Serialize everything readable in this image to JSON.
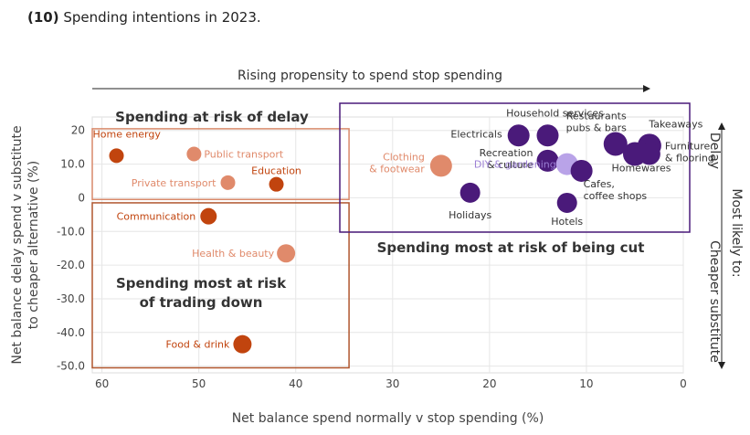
{
  "heading": {
    "number": "(10)",
    "text": "Spending intentions in 2023."
  },
  "chart_data": {
    "type": "scatter",
    "title": "Spending intentions in 2023.",
    "xlabel": "Net balance spend normally v stop spending (%)",
    "ylabel": "Net balance delay spend v substitute to cheaper alternative (%)",
    "ylabel_lines": [
      "Net balance delay spend v substitute",
      "to cheaper alternative (%)"
    ],
    "xlim": [
      61,
      0
    ],
    "ylim": [
      -52,
      24
    ],
    "x_reversed": true,
    "grid": true,
    "xticks": [
      60,
      50,
      40,
      30,
      20,
      10,
      0
    ],
    "xtick_labels": [
      "60",
      "50",
      "40",
      "30",
      "20",
      "10",
      "0"
    ],
    "yticks": [
      20,
      10,
      0,
      -10,
      -20,
      -30,
      -40,
      -50
    ],
    "ytick_labels": [
      "20",
      "10.0",
      "0",
      "-10.0",
      "-20.0",
      "-30.0",
      "-40.0",
      "-50.0"
    ],
    "top_arrow_label": "Rising propensity to spend stop spending",
    "right_axis": {
      "title": "Most likely to:",
      "top_label": "Delay",
      "bottom_label": "Cheaper substitute"
    },
    "colors": {
      "dark_orange": "#c1440e",
      "light_orange": "#e08a6b",
      "dark_purple": "#4a1a7a",
      "light_purple": "#b9a3e8",
      "box_orange": "#d9896a",
      "box_dark_orange": "#b0562e",
      "box_purple": "#4a1a7a"
    },
    "boxes": [
      {
        "label": "Spending at risk of delay",
        "x": [
          61,
          34.5
        ],
        "y": [
          20.5,
          -0.5
        ],
        "color": "#d9896a"
      },
      {
        "label": "Spending most at risk of trading down",
        "label_lines": [
          "Spending most at risk",
          "of trading down"
        ],
        "x": [
          61,
          34.5
        ],
        "y": [
          -1.5,
          -50.5
        ],
        "color": "#b0562e"
      },
      {
        "label": "Spending most at risk of being cut",
        "x": [
          35,
          0
        ],
        "y": [
          28,
          -10.5
        ],
        "color": "#4a1a7a"
      }
    ],
    "points": [
      {
        "label": "Home energy",
        "x": 58.5,
        "y": 12.5,
        "color": "#c1440e",
        "label_color": "#c1440e"
      },
      {
        "label": "Public transport",
        "x": 50.5,
        "y": 13.0,
        "color": "#e08a6b",
        "label_color": "#e08a6b"
      },
      {
        "label": "Private transport",
        "x": 47.0,
        "y": 4.5,
        "color": "#e08a6b",
        "label_color": "#e08a6b"
      },
      {
        "label": "Education",
        "x": 42.0,
        "y": 4.0,
        "color": "#c1440e",
        "label_color": "#c1440e"
      },
      {
        "label": "Communication",
        "x": 49.0,
        "y": -5.5,
        "color": "#c1440e",
        "label_color": "#c1440e"
      },
      {
        "label": "Health & beauty",
        "x": 41.0,
        "y": -16.5,
        "color": "#e08a6b",
        "label_color": "#e08a6b"
      },
      {
        "label": "Food & drink",
        "x": 45.5,
        "y": -43.5,
        "color": "#c1440e",
        "label_color": "#c1440e"
      },
      {
        "label": "Clothing & footwear",
        "label_lines": [
          "Clothing",
          "& footwear"
        ],
        "x": 25.0,
        "y": 9.5,
        "color": "#e08a6b",
        "label_color": "#e08a6b"
      },
      {
        "label": "Holidays",
        "x": 22.0,
        "y": 1.5,
        "color": "#4a1a7a",
        "label_color": "#333333"
      },
      {
        "label": "Electricals",
        "x": 17.0,
        "y": 18.5,
        "color": "#4a1a7a",
        "label_color": "#333333"
      },
      {
        "label": "Household services",
        "x": 14.0,
        "y": 18.5,
        "color": "#4a1a7a",
        "label_color": "#333333"
      },
      {
        "label": "Recreation & culture",
        "label_lines": [
          "Recreation",
          "& culture"
        ],
        "x": 14.0,
        "y": 11.0,
        "color": "#4a1a7a",
        "label_color": "#333333"
      },
      {
        "label": "DIY & gardening",
        "x": 12.0,
        "y": 10.0,
        "color": "#b9a3e8",
        "label_color": "#9b7fd4"
      },
      {
        "label": "Cafes, coffee shops",
        "label_lines": [
          "Cafes,",
          "coffee shops"
        ],
        "x": 10.5,
        "y": 8.0,
        "color": "#4a1a7a",
        "label_color": "#333333"
      },
      {
        "label": "Hotels",
        "x": 12.0,
        "y": -1.5,
        "color": "#4a1a7a",
        "label_color": "#333333"
      },
      {
        "label": "Restaurants pubs & bars",
        "label_lines": [
          "Restaurants",
          "pubs & bars"
        ],
        "x": 7.0,
        "y": 16.0,
        "color": "#4a1a7a",
        "label_color": "#333333"
      },
      {
        "label": "Homewares",
        "x": 5.0,
        "y": 13.0,
        "color": "#4a1a7a",
        "label_color": "#333333"
      },
      {
        "label": "Takeaways",
        "x": 3.5,
        "y": 15.5,
        "color": "#4a1a7a",
        "label_color": "#333333"
      },
      {
        "label": "Furniture & flooring",
        "label_lines": [
          "Furniture",
          "& flooring"
        ],
        "x": 3.5,
        "y": 13.0,
        "color": "#4a1a7a",
        "label_color": "#333333"
      }
    ]
  }
}
